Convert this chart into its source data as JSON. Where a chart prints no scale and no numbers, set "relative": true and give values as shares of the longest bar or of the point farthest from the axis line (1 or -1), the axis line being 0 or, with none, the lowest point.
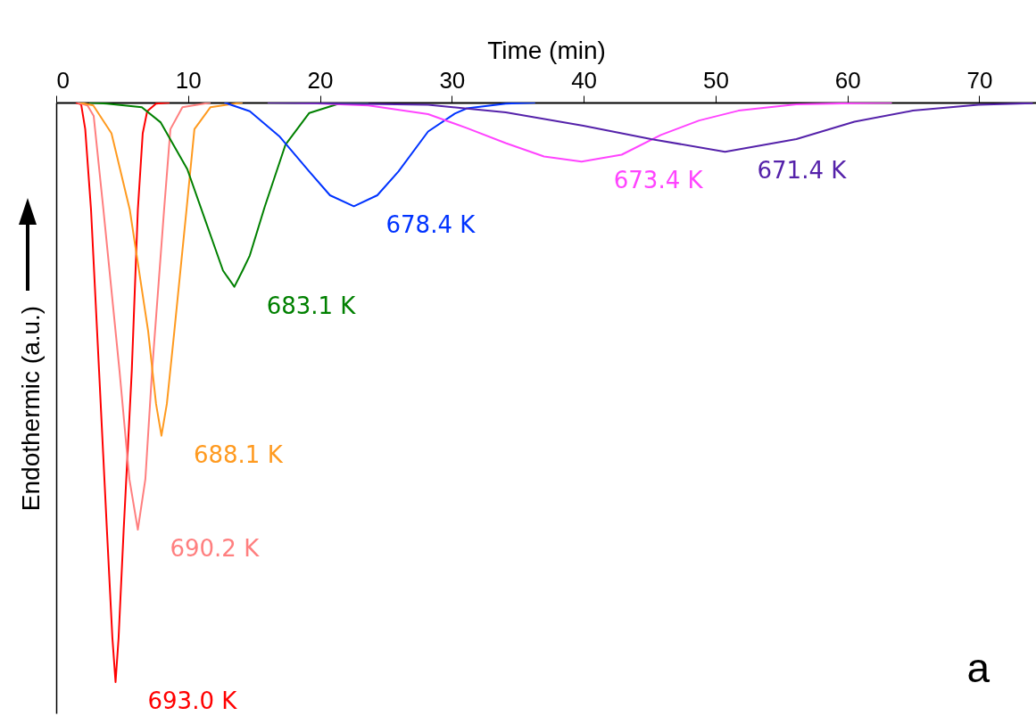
{
  "chart_data": {
    "type": "line",
    "xlabel": "Time (min)",
    "ylabel": "Endothermic (a.u.)",
    "relative": true,
    "xlim": [
      0,
      74.3
    ],
    "xticks": [
      0,
      10,
      20,
      30,
      40,
      50,
      60,
      70
    ],
    "annotations": [
      "a"
    ],
    "series": [
      {
        "name": "693.0 K",
        "color": "#ff0000",
        "x": [
          1.49,
          1.89,
          2.2,
          2.64,
          3.25,
          3.85,
          4.26,
          4.5,
          4.73,
          5.11,
          5.73,
          6.19,
          6.56,
          6.9,
          7.57,
          8.59
        ],
        "values": [
          0,
          -0.003,
          -0.046,
          -0.185,
          -0.463,
          -0.74,
          -0.924,
          -1,
          -0.924,
          -0.74,
          -0.463,
          -0.185,
          -0.053,
          -0.015,
          -0.002,
          0
        ]
      },
      {
        "name": "690.2 K",
        "color": "#ff7f7f",
        "x": [
          1.6,
          2.37,
          2.84,
          3.58,
          4.8,
          5.55,
          6.19,
          6.76,
          7.27,
          8.18,
          8.66,
          9.57,
          11.7
        ],
        "values": [
          0,
          -0.005,
          -0.023,
          -0.185,
          -0.463,
          -0.65,
          -0.737,
          -0.65,
          -0.463,
          -0.185,
          -0.046,
          -0.008,
          0
        ]
      },
      {
        "name": "688.1 K",
        "color": "#ff9a1f",
        "x": [
          1.8,
          2.81,
          4.19,
          5.58,
          6.97,
          7.57,
          7.98,
          8.39,
          8.96,
          9.88,
          10.48,
          11.7,
          14.13
        ],
        "values": [
          0,
          -0.005,
          -0.053,
          -0.185,
          -0.394,
          -0.52,
          -0.575,
          -0.52,
          -0.394,
          -0.185,
          -0.046,
          -0.008,
          0
        ]
      },
      {
        "name": "683.1 K",
        "color": "#008000",
        "x": [
          2.5,
          3.85,
          6.49,
          7.91,
          9.94,
          11.75,
          12.65,
          13.51,
          14.13,
          14.68,
          15.81,
          17.38,
          19.19,
          21.44,
          23.67
        ],
        "values": [
          0,
          -0.002,
          -0.008,
          -0.034,
          -0.115,
          -0.232,
          -0.29,
          -0.318,
          -0.29,
          -0.264,
          -0.18,
          -0.073,
          -0.018,
          -0.002,
          0
        ]
      },
      {
        "name": "678.4 K",
        "color": "#0033ff",
        "x": [
          12.76,
          14.68,
          16.91,
          19.19,
          20.76,
          22.57,
          24.35,
          25.95,
          28.2,
          30.23,
          31.14,
          34.09,
          36.32
        ],
        "values": [
          0,
          -0.015,
          -0.058,
          -0.119,
          -0.16,
          -0.179,
          -0.16,
          -0.119,
          -0.05,
          -0.019,
          -0.01,
          -0.002,
          0
        ]
      },
      {
        "name": "673.4 K",
        "color": "#ff44ff",
        "x": [
          18.06,
          23.67,
          28.2,
          31.14,
          34.09,
          36.99,
          39.84,
          42.88,
          45.85,
          48.76,
          51.74,
          56.13,
          60.53,
          63.37
        ],
        "values": [
          0,
          -0.005,
          -0.02,
          -0.044,
          -0.07,
          -0.093,
          -0.102,
          -0.09,
          -0.056,
          -0.031,
          -0.014,
          -0.003,
          -0.001,
          0
        ]
      },
      {
        "name": "671.4 K",
        "color": "#5522aa",
        "x": [
          16.03,
          28.2,
          34.09,
          39.97,
          45.11,
          50.72,
          56.13,
          60.53,
          64.96,
          69.93,
          74.06
        ],
        "values": [
          0,
          -0.004,
          -0.017,
          -0.04,
          -0.063,
          -0.085,
          -0.063,
          -0.033,
          -0.014,
          -0.004,
          -0.001
        ]
      }
    ]
  }
}
